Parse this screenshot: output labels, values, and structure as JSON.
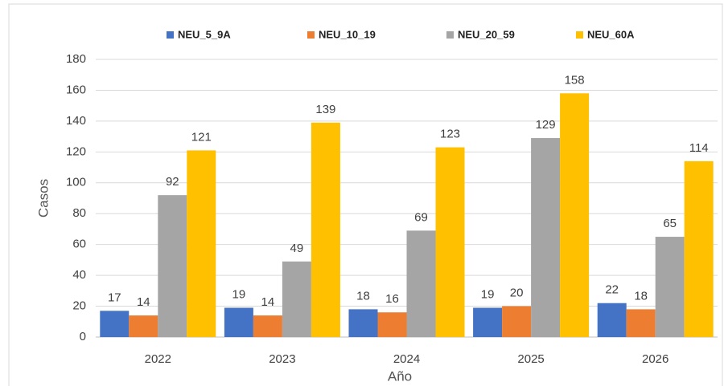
{
  "chart_data": {
    "type": "bar",
    "categories": [
      "2022",
      "2023",
      "2024",
      "2025",
      "2026"
    ],
    "series": [
      {
        "name": "NEU_5_9A",
        "color": "#4472c4",
        "values": [
          17,
          19,
          18,
          19,
          22
        ]
      },
      {
        "name": "NEU_10_19",
        "color": "#ed7d31",
        "values": [
          14,
          14,
          16,
          20,
          18
        ]
      },
      {
        "name": "NEU_20_59",
        "color": "#a5a5a5",
        "values": [
          92,
          49,
          69,
          129,
          65
        ]
      },
      {
        "name": "NEU_60A",
        "color": "#ffc000",
        "values": [
          121,
          139,
          123,
          158,
          114
        ]
      }
    ],
    "x_label": "Año",
    "y_label": "Casos",
    "ylim": [
      0,
      180
    ],
    "yticks": [
      0,
      20,
      40,
      60,
      80,
      100,
      120,
      140,
      160,
      180
    ],
    "grid": true,
    "legend": "top"
  }
}
